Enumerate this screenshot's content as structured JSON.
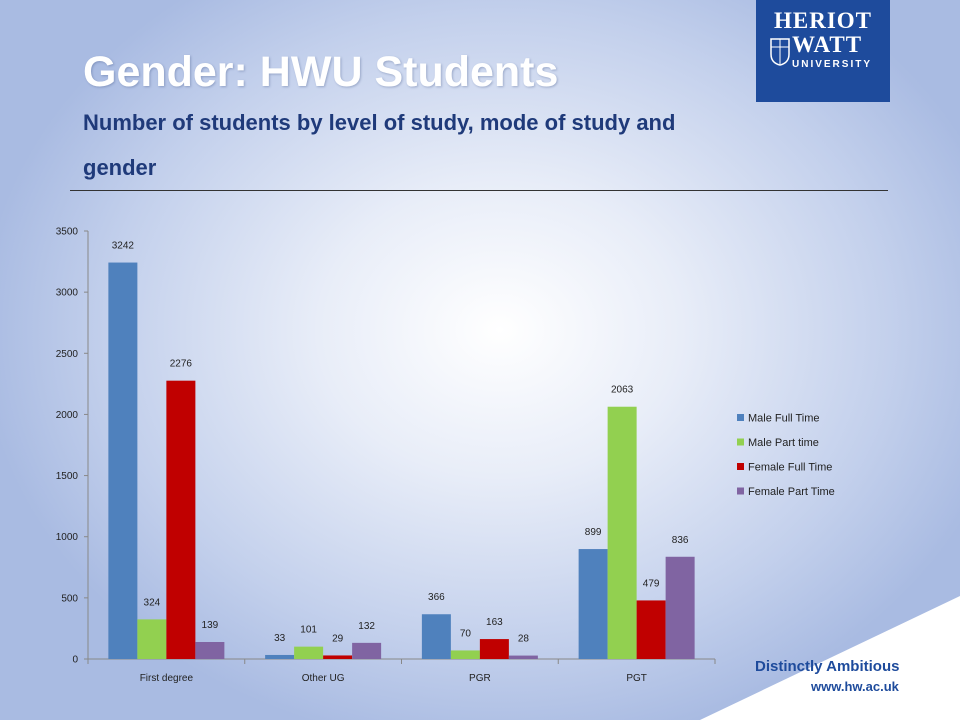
{
  "header": {
    "title": "Gender: HWU Students",
    "subtitle": "Number of students by level of study, mode of study and gender"
  },
  "logo": {
    "line1": "HERIOT",
    "line2": "WATT",
    "line3": "UNIVERSITY"
  },
  "footer": {
    "tagline": "Distinctly Ambitious",
    "url": "www.hw.ac.uk"
  },
  "colors": {
    "accent": "#1e4b9c",
    "male_full_time": "#4f81bd",
    "male_part_time": "#92d050",
    "female_full_time": "#c00000",
    "female_part_time": "#8064a2"
  },
  "chart_data": {
    "type": "bar",
    "categories": [
      "First degree",
      "Other UG",
      "PGR",
      "PGT"
    ],
    "series": [
      {
        "name": "Male Full Time",
        "values": [
          3242,
          33,
          366,
          899
        ]
      },
      {
        "name": "Male Part time",
        "values": [
          324,
          101,
          70,
          2063
        ]
      },
      {
        "name": "Female Full Time",
        "values": [
          2276,
          29,
          163,
          479
        ]
      },
      {
        "name": "Female Part Time",
        "values": [
          139,
          132,
          28,
          836
        ]
      }
    ],
    "yticks": [
      0,
      500,
      1000,
      1500,
      2000,
      2500,
      3000,
      3500
    ],
    "ylim": [
      0,
      3500
    ],
    "grid": false,
    "legend": "right",
    "data_labels": true
  }
}
